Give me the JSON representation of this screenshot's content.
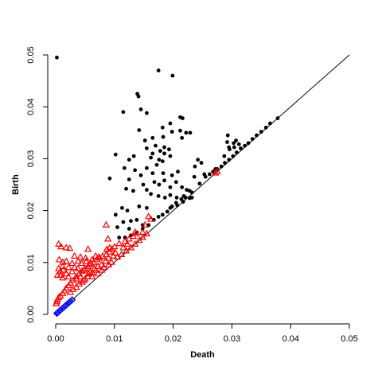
{
  "chart_data": {
    "type": "scatter",
    "xlabel": "Death",
    "ylabel": "Birth",
    "xlim": [
      0,
      0.05
    ],
    "ylim": [
      0,
      0.05
    ],
    "x_ticks": [
      "0.00",
      "0.01",
      "0.02",
      "0.03",
      "0.04",
      "0.05"
    ],
    "y_ticks": [
      "0.00",
      "0.01",
      "0.02",
      "0.03",
      "0.04",
      "0.05"
    ],
    "diagonal": true,
    "series": [
      {
        "marker": "filled-circle",
        "color": "#000000",
        "points": [
          [
            0.0002,
            0.0495
          ],
          [
            0.0175,
            0.047
          ],
          [
            0.0199,
            0.046
          ],
          [
            0.0139,
            0.0425
          ],
          [
            0.0141,
            0.042
          ],
          [
            0.0145,
            0.0395
          ],
          [
            0.0115,
            0.039
          ],
          [
            0.0155,
            0.0388
          ],
          [
            0.0212,
            0.038
          ],
          [
            0.0216,
            0.0378
          ],
          [
            0.0195,
            0.0368
          ],
          [
            0.0182,
            0.036
          ],
          [
            0.0142,
            0.0355
          ],
          [
            0.0212,
            0.0354
          ],
          [
            0.0198,
            0.0352
          ],
          [
            0.0222,
            0.035
          ],
          [
            0.0229,
            0.035
          ],
          [
            0.0183,
            0.0342
          ],
          [
            0.0165,
            0.034
          ],
          [
            0.0152,
            0.0335
          ],
          [
            0.0215,
            0.034
          ],
          [
            0.017,
            0.0325
          ],
          [
            0.0155,
            0.032
          ],
          [
            0.0185,
            0.0322
          ],
          [
            0.0193,
            0.0318
          ],
          [
            0.0178,
            0.0315
          ],
          [
            0.0165,
            0.031
          ],
          [
            0.0185,
            0.031
          ],
          [
            0.0102,
            0.0308
          ],
          [
            0.0133,
            0.0305
          ],
          [
            0.0162,
            0.0302
          ],
          [
            0.0195,
            0.0305
          ],
          [
            0.0125,
            0.0298
          ],
          [
            0.0176,
            0.0298
          ],
          [
            0.0182,
            0.0295
          ],
          [
            0.0242,
            0.0298
          ],
          [
            0.0248,
            0.0292
          ],
          [
            0.0237,
            0.0285
          ],
          [
            0.0172,
            0.0288
          ],
          [
            0.0117,
            0.0282
          ],
          [
            0.0155,
            0.0282
          ],
          [
            0.0135,
            0.0278
          ],
          [
            0.0208,
            0.0275
          ],
          [
            0.0165,
            0.0272
          ],
          [
            0.0183,
            0.0272
          ],
          [
            0.0198,
            0.0268
          ],
          [
            0.0145,
            0.0268
          ],
          [
            0.0253,
            0.027
          ],
          [
            0.0236,
            0.0265
          ],
          [
            0.0092,
            0.0262
          ],
          [
            0.0125,
            0.026
          ],
          [
            0.0185,
            0.0258
          ],
          [
            0.0168,
            0.0255
          ],
          [
            0.0176,
            0.025
          ],
          [
            0.0205,
            0.0255
          ],
          [
            0.0149,
            0.025
          ],
          [
            0.0195,
            0.0245
          ],
          [
            0.0215,
            0.0245
          ],
          [
            0.0223,
            0.024
          ],
          [
            0.0232,
            0.0235
          ],
          [
            0.012,
            0.0242
          ],
          [
            0.0155,
            0.024
          ],
          [
            0.0132,
            0.0238
          ],
          [
            0.0162,
            0.0232
          ],
          [
            0.0175,
            0.0228
          ],
          [
            0.0186,
            0.0225
          ],
          [
            0.0195,
            0.023
          ],
          [
            0.0206,
            0.0225
          ],
          [
            0.0214,
            0.0222
          ],
          [
            0.0221,
            0.0225
          ],
          [
            0.0228,
            0.0224
          ],
          [
            0.0232,
            0.0225
          ],
          [
            0.0217,
            0.0217
          ],
          [
            0.0207,
            0.021
          ],
          [
            0.0198,
            0.0208
          ],
          [
            0.019,
            0.0198
          ],
          [
            0.0182,
            0.0192
          ],
          [
            0.0175,
            0.0188
          ],
          [
            0.0167,
            0.0182
          ],
          [
            0.0158,
            0.0172
          ],
          [
            0.0148,
            0.0165
          ],
          [
            0.0138,
            0.0158
          ],
          [
            0.0128,
            0.0152
          ],
          [
            0.0118,
            0.0148
          ],
          [
            0.0108,
            0.0148
          ],
          [
            0.0113,
            0.0205
          ],
          [
            0.0122,
            0.02
          ],
          [
            0.0142,
            0.0208
          ],
          [
            0.0155,
            0.0205
          ],
          [
            0.0102,
            0.0192
          ],
          [
            0.0128,
            0.018
          ],
          [
            0.0138,
            0.0182
          ],
          [
            0.0115,
            0.0178
          ],
          [
            0.0148,
            0.0172
          ],
          [
            0.0105,
            0.0168
          ],
          [
            0.0125,
            0.0165
          ],
          [
            0.0245,
            0.0252
          ],
          [
            0.0255,
            0.0265
          ],
          [
            0.0268,
            0.0275
          ],
          [
            0.0275,
            0.028
          ],
          [
            0.0282,
            0.0285
          ],
          [
            0.0288,
            0.0292
          ],
          [
            0.0295,
            0.0298
          ],
          [
            0.0302,
            0.0305
          ],
          [
            0.0308,
            0.0312
          ],
          [
            0.0315,
            0.032
          ],
          [
            0.0322,
            0.0325
          ],
          [
            0.0328,
            0.033
          ],
          [
            0.0335,
            0.0338
          ],
          [
            0.0342,
            0.0345
          ],
          [
            0.035,
            0.0352
          ],
          [
            0.0358,
            0.036
          ],
          [
            0.0365,
            0.0368
          ],
          [
            0.0378,
            0.0378
          ],
          [
            0.0293,
            0.0345
          ],
          [
            0.0292,
            0.0332
          ],
          [
            0.0307,
            0.0335
          ],
          [
            0.0303,
            0.033
          ],
          [
            0.0295,
            0.0322
          ],
          [
            0.0304,
            0.0322
          ],
          [
            0.0287,
            0.0305
          ],
          [
            0.0296,
            0.0318
          ],
          [
            0.0312,
            0.0328
          ],
          [
            0.0272,
            0.028
          ],
          [
            0.0262,
            0.027
          ],
          [
            0.0228,
            0.0238
          ],
          [
            0.0218,
            0.0228
          ],
          [
            0.0205,
            0.0215
          ],
          [
            0.0195,
            0.0205
          ]
        ]
      },
      {
        "marker": "open-triangle",
        "color": "#ff0000",
        "points": [
          [
            0.0005,
            0.0135
          ],
          [
            0.0009,
            0.013
          ],
          [
            0.0018,
            0.0128
          ],
          [
            0.0024,
            0.0127
          ],
          [
            0.0055,
            0.0125
          ],
          [
            0.0087,
            0.0125
          ],
          [
            0.0092,
            0.0128
          ],
          [
            0.0086,
            0.0172
          ],
          [
            0.0089,
            0.0145
          ],
          [
            0.0158,
            0.0188
          ],
          [
            0.0162,
            0.0183
          ],
          [
            0.0152,
            0.0172
          ],
          [
            0.0148,
            0.0158
          ],
          [
            0.0137,
            0.0155
          ],
          [
            0.0132,
            0.015
          ],
          [
            0.0125,
            0.0145
          ],
          [
            0.0118,
            0.014
          ],
          [
            0.0108,
            0.0136
          ],
          [
            0.01,
            0.013
          ],
          [
            0.0096,
            0.0125
          ],
          [
            0.0092,
            0.012
          ],
          [
            0.0086,
            0.0115
          ],
          [
            0.008,
            0.0112
          ],
          [
            0.0075,
            0.0108
          ],
          [
            0.007,
            0.0105
          ],
          [
            0.0065,
            0.01
          ],
          [
            0.006,
            0.0098
          ],
          [
            0.0055,
            0.0092
          ],
          [
            0.005,
            0.0088
          ],
          [
            0.0045,
            0.0083
          ],
          [
            0.004,
            0.0078
          ],
          [
            0.0035,
            0.0072
          ],
          [
            0.003,
            0.0065
          ],
          [
            0.0025,
            0.006
          ],
          [
            0.0022,
            0.0055
          ],
          [
            0.0018,
            0.005
          ],
          [
            0.0015,
            0.0045
          ],
          [
            0.0012,
            0.004
          ],
          [
            0.0008,
            0.0035
          ],
          [
            0.0005,
            0.0032
          ],
          [
            0.0003,
            0.0028
          ],
          [
            0.0002,
            0.0024
          ],
          [
            0.0001,
            0.002
          ],
          [
            0.0032,
            0.0112
          ],
          [
            0.0042,
            0.011
          ],
          [
            0.0051,
            0.0108
          ],
          [
            0.0062,
            0.0105
          ],
          [
            0.0068,
            0.0112
          ],
          [
            0.0073,
            0.011
          ],
          [
            0.0038,
            0.0102
          ],
          [
            0.0044,
            0.0098
          ],
          [
            0.0052,
            0.0102
          ],
          [
            0.0058,
            0.0095
          ],
          [
            0.0028,
            0.0098
          ],
          [
            0.0018,
            0.0102
          ],
          [
            0.0012,
            0.01
          ],
          [
            0.0006,
            0.0105
          ],
          [
            0.0022,
            0.009
          ],
          [
            0.0032,
            0.009
          ],
          [
            0.0013,
            0.0085
          ],
          [
            0.0008,
            0.0082
          ],
          [
            0.0018,
            0.0078
          ],
          [
            0.0028,
            0.0082
          ],
          [
            0.0038,
            0.0088
          ],
          [
            0.0048,
            0.0085
          ],
          [
            0.0058,
            0.0082
          ],
          [
            0.0066,
            0.0088
          ],
          [
            0.0008,
            0.0075
          ],
          [
            0.0003,
            0.0075
          ],
          [
            0.0012,
            0.007
          ],
          [
            0.0022,
            0.0072
          ],
          [
            0.0035,
            0.0068
          ],
          [
            0.0042,
            0.0072
          ],
          [
            0.0048,
            0.0065
          ],
          [
            0.0056,
            0.0078
          ],
          [
            0.0062,
            0.0072
          ],
          [
            0.0072,
            0.0078
          ],
          [
            0.0078,
            0.0085
          ],
          [
            0.0082,
            0.009
          ],
          [
            0.009,
            0.0095
          ],
          [
            0.0095,
            0.01
          ],
          [
            0.0105,
            0.011
          ],
          [
            0.0112,
            0.0115
          ],
          [
            0.012,
            0.0122
          ],
          [
            0.0128,
            0.0128
          ],
          [
            0.0135,
            0.0135
          ],
          [
            0.0142,
            0.0142
          ],
          [
            0.0148,
            0.0148
          ],
          [
            0.0155,
            0.0155
          ],
          [
            0.0135,
            0.0158
          ],
          [
            0.0122,
            0.0135
          ],
          [
            0.0115,
            0.0128
          ],
          [
            0.0102,
            0.0118
          ],
          [
            0.0098,
            0.0112
          ],
          [
            0.009,
            0.0108
          ],
          [
            0.0085,
            0.0102
          ],
          [
            0.0078,
            0.0095
          ],
          [
            0.0072,
            0.0092
          ],
          [
            0.0068,
            0.0085
          ],
          [
            0.0062,
            0.008
          ],
          [
            0.0055,
            0.0072
          ],
          [
            0.005,
            0.0068
          ],
          [
            0.0045,
            0.0062
          ],
          [
            0.004,
            0.0058
          ],
          [
            0.0035,
            0.0052
          ],
          [
            0.003,
            0.0048
          ],
          [
            0.0025,
            0.0042
          ],
          [
            0.0275,
            0.0275
          ],
          [
            0.0272,
            0.0272
          ],
          [
            0.0012,
            0.0092
          ],
          [
            0.0005,
            0.0088
          ]
        ]
      },
      {
        "marker": "open-diamond",
        "color": "#0000ff",
        "points": [
          [
            0.0002,
            0.0002
          ],
          [
            0.0005,
            0.0005
          ],
          [
            0.0008,
            0.0008
          ],
          [
            0.0012,
            0.0012
          ],
          [
            0.0015,
            0.0015
          ],
          [
            0.0018,
            0.0018
          ],
          [
            0.0022,
            0.0022
          ],
          [
            0.0025,
            0.0025
          ],
          [
            0.0028,
            0.0028
          ],
          [
            0.0003,
            0.0003
          ]
        ]
      }
    ]
  }
}
